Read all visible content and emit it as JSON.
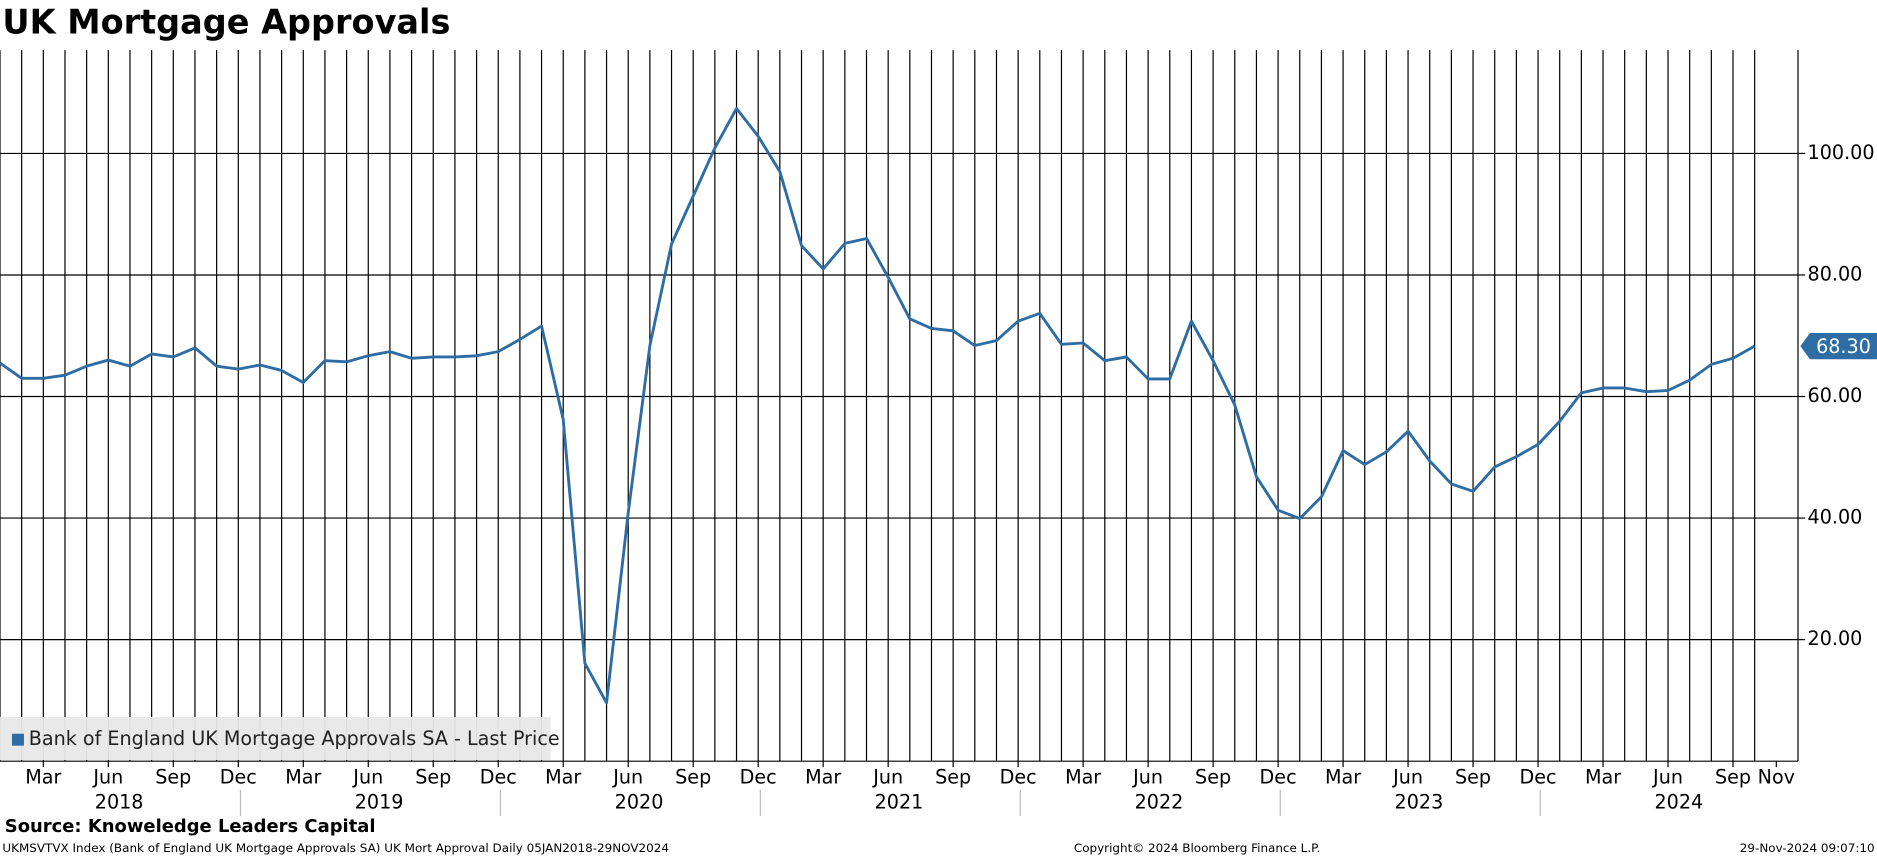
{
  "chart_data": {
    "type": "line",
    "title": "UK Mortgage Approvals",
    "x": [
      "2018-01",
      "2018-02",
      "2018-03",
      "2018-04",
      "2018-05",
      "2018-06",
      "2018-07",
      "2018-08",
      "2018-09",
      "2018-10",
      "2018-11",
      "2018-12",
      "2019-01",
      "2019-02",
      "2019-03",
      "2019-04",
      "2019-05",
      "2019-06",
      "2019-07",
      "2019-08",
      "2019-09",
      "2019-10",
      "2019-11",
      "2019-12",
      "2020-01",
      "2020-02",
      "2020-03",
      "2020-04",
      "2020-05",
      "2020-06",
      "2020-07",
      "2020-08",
      "2020-09",
      "2020-10",
      "2020-11",
      "2020-12",
      "2021-01",
      "2021-02",
      "2021-03",
      "2021-04",
      "2021-05",
      "2021-06",
      "2021-07",
      "2021-08",
      "2021-09",
      "2021-10",
      "2021-11",
      "2021-12",
      "2022-01",
      "2022-02",
      "2022-03",
      "2022-04",
      "2022-05",
      "2022-06",
      "2022-07",
      "2022-08",
      "2022-09",
      "2022-10",
      "2022-11",
      "2022-12",
      "2023-01",
      "2023-02",
      "2023-03",
      "2023-04",
      "2023-05",
      "2023-06",
      "2023-07",
      "2023-08",
      "2023-09",
      "2023-10",
      "2023-11",
      "2023-12",
      "2024-01",
      "2024-02",
      "2024-03",
      "2024-04",
      "2024-05",
      "2024-06",
      "2024-07",
      "2024-08",
      "2024-09",
      "2024-10"
    ],
    "series": [
      {
        "name": "Bank of England UK Mortgage Approvals SA - Last Price",
        "color": "#2e6da4",
        "values": [
          65.5,
          63,
          63,
          63.5,
          65,
          66,
          65,
          67,
          66.5,
          68,
          65,
          64.5,
          65.2,
          64.3,
          62.3,
          65.9,
          65.7,
          66.7,
          67.4,
          66.3,
          66.5,
          66.5,
          66.7,
          67.4,
          69.4,
          71.6,
          56.2,
          16.1,
          9.6,
          40.9,
          68.4,
          85.1,
          93,
          100.9,
          107.4,
          102.8,
          97,
          84.8,
          81,
          85.2,
          86,
          79.6,
          72.8,
          71.2,
          70.8,
          68.4,
          69.2,
          72.4,
          73.7,
          68.6,
          68.8,
          65.9,
          66.5,
          62.9,
          62.9,
          72.4,
          65.9,
          58.6,
          46.8,
          41.3,
          39.9,
          43.5,
          51.1,
          48.8,
          50.9,
          54.3,
          49.4,
          45.6,
          44.4,
          48.4,
          50.1,
          52.1,
          55.9,
          60.6,
          61.4,
          61.4,
          60.8,
          61,
          62.7,
          65.3,
          66.3,
          68.3
        ],
        "value_labels": [
          null,
          null,
          null,
          null,
          null,
          null,
          null,
          null,
          null,
          null,
          null,
          null,
          null,
          null,
          null,
          null,
          null,
          null,
          null,
          null,
          null,
          null,
          null,
          null,
          null,
          null,
          null,
          null,
          null,
          null,
          null,
          null,
          null,
          null,
          null,
          null,
          null,
          null,
          null,
          null,
          null,
          null,
          null,
          null,
          null,
          null,
          null,
          null,
          null,
          null,
          null,
          null,
          null,
          null,
          null,
          null,
          null,
          null,
          null,
          null,
          null,
          null,
          null,
          null,
          null,
          null,
          null,
          null,
          null,
          null,
          null,
          null,
          null,
          null,
          null,
          null,
          null,
          null,
          null,
          null,
          null,
          "68.30"
        ]
      }
    ],
    "xlim": [
      "2018-01",
      "2024-12"
    ],
    "xticks": [
      {
        "value": "2018-03",
        "label": "Mar"
      },
      {
        "value": "2018-06",
        "label": "Jun"
      },
      {
        "value": "2018-09",
        "label": "Sep"
      },
      {
        "value": "2018-12",
        "label": "Dec"
      },
      {
        "value": "2019-03",
        "label": "Mar"
      },
      {
        "value": "2019-06",
        "label": "Jun"
      },
      {
        "value": "2019-09",
        "label": "Sep"
      },
      {
        "value": "2019-12",
        "label": "Dec"
      },
      {
        "value": "2020-03",
        "label": "Mar"
      },
      {
        "value": "2020-06",
        "label": "Jun"
      },
      {
        "value": "2020-09",
        "label": "Sep"
      },
      {
        "value": "2020-12",
        "label": "Dec"
      },
      {
        "value": "2021-03",
        "label": "Mar"
      },
      {
        "value": "2021-06",
        "label": "Jun"
      },
      {
        "value": "2021-09",
        "label": "Sep"
      },
      {
        "value": "2021-12",
        "label": "Dec"
      },
      {
        "value": "2022-03",
        "label": "Mar"
      },
      {
        "value": "2022-06",
        "label": "Jun"
      },
      {
        "value": "2022-09",
        "label": "Sep"
      },
      {
        "value": "2022-12",
        "label": "Dec"
      },
      {
        "value": "2023-03",
        "label": "Mar"
      },
      {
        "value": "2023-06",
        "label": "Jun"
      },
      {
        "value": "2023-09",
        "label": "Sep"
      },
      {
        "value": "2023-12",
        "label": "Dec"
      },
      {
        "value": "2024-03",
        "label": "Mar"
      },
      {
        "value": "2024-06",
        "label": "Jun"
      },
      {
        "value": "2024-09",
        "label": "Sep"
      },
      {
        "value": "2024-11",
        "label": "Nov"
      }
    ],
    "year_labels": [
      "2018",
      "2019",
      "2020",
      "2021",
      "2022",
      "2023",
      "2024"
    ],
    "ylim": [
      0,
      117
    ],
    "yticks": [
      {
        "value": 20,
        "label": "20.00"
      },
      {
        "value": 40,
        "label": "40.00"
      },
      {
        "value": 60,
        "label": "60.00"
      },
      {
        "value": 80,
        "label": "80.00"
      },
      {
        "value": 100,
        "label": "100.00"
      }
    ],
    "grid": true,
    "legend": "bottom-left",
    "source": "Source: Knoweledge Leaders Capital",
    "footer_left": "UKMSVTVX Index (Bank of England UK Mortgage Approvals SA) UK Mort Approval  Daily 05JAN2018-29NOV2024",
    "footer_center": "Copyright© 2024 Bloomberg Finance L.P.",
    "footer_right": "29-Nov-2024 09:07:10"
  }
}
